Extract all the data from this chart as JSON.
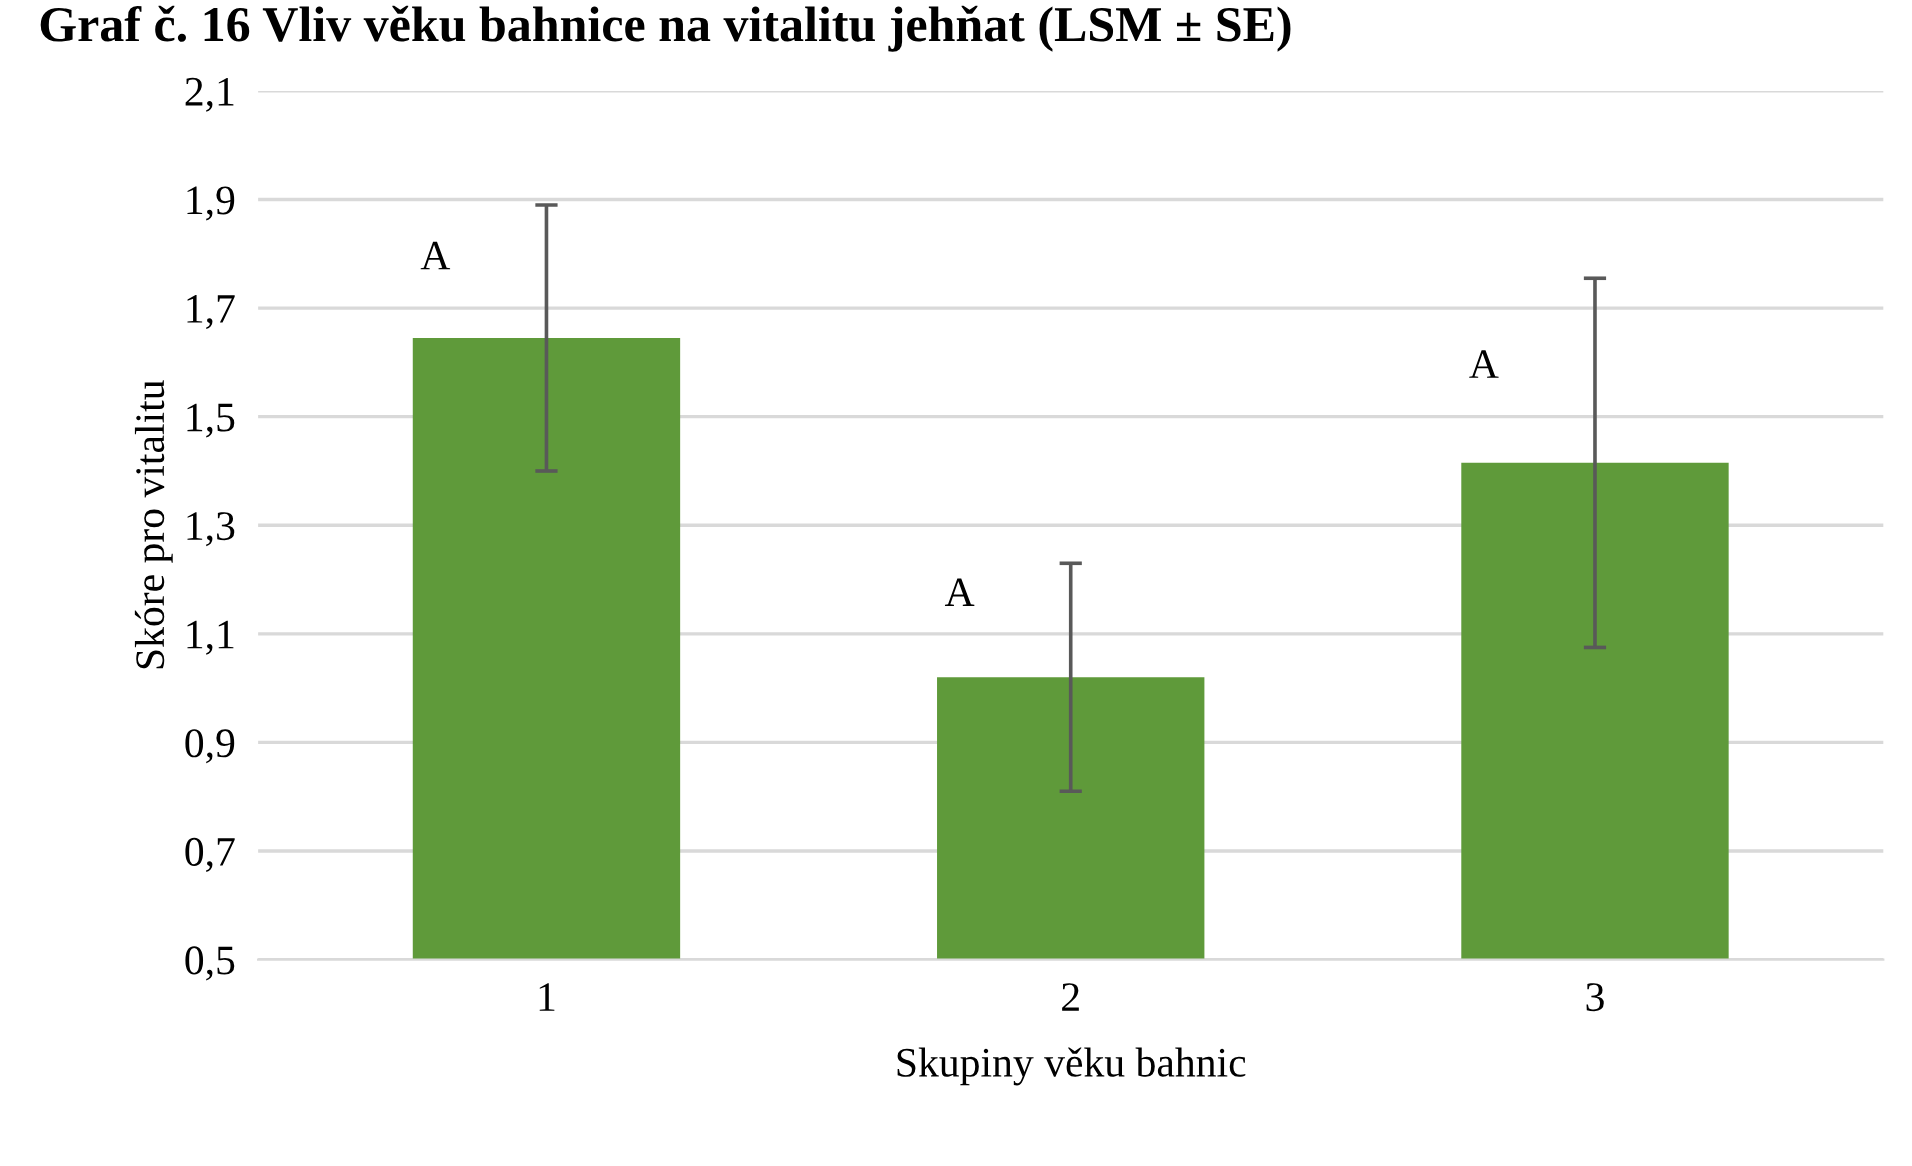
{
  "chart_data": {
    "type": "bar",
    "title": "Graf č. 16 Vliv věku bahnice na vitalitu jehňat (LSM ± SE)",
    "xlabel": "Skupiny věku bahnic",
    "ylabel": "Skóre pro vitalitu",
    "categories": [
      "1",
      "2",
      "3"
    ],
    "values": [
      1.645,
      1.02,
      1.415
    ],
    "errors": [
      0.245,
      0.21,
      0.34
    ],
    "color": "#5f9a3a",
    "ylim": [
      0.5,
      2.1
    ],
    "yticks": [
      {
        "value": 0.5,
        "label": "0,5"
      },
      {
        "value": 0.7,
        "label": "0,7"
      },
      {
        "value": 0.9,
        "label": "0,9"
      },
      {
        "value": 1.1,
        "label": "1,1"
      },
      {
        "value": 1.3,
        "label": "1,3"
      },
      {
        "value": 1.5,
        "label": "1,5"
      },
      {
        "value": 1.7,
        "label": "1,7"
      },
      {
        "value": 1.9,
        "label": "1,9"
      },
      {
        "value": 2.1,
        "label": "2,1"
      }
    ],
    "grid": "y",
    "annotations": [
      {
        "text": "A",
        "x": "1",
        "y": 1.79
      },
      {
        "text": "A",
        "x": "2",
        "y": 1.17
      },
      {
        "text": "A",
        "x": "3",
        "y": 1.59
      }
    ]
  }
}
